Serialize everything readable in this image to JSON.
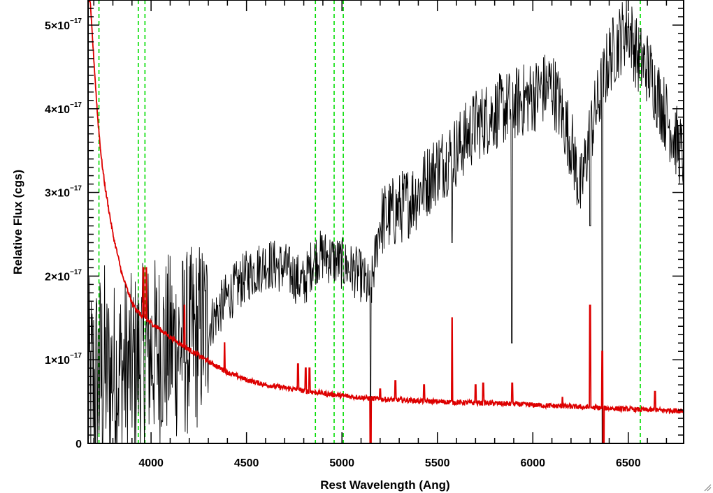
{
  "chart_data": {
    "type": "line",
    "xlabel": "Rest Wavelength (Ang)",
    "ylabel": "Relative Flux (cgs)",
    "xlim": [
      3670,
      6790
    ],
    "ylim": [
      0,
      5.3e-17
    ],
    "x_ticks": [
      4000,
      4500,
      5000,
      5500,
      6000,
      6500
    ],
    "x_tick_labels": [
      "4000",
      "4500",
      "5000",
      "5500",
      "6000",
      "6500"
    ],
    "y_ticks": [
      0,
      1e-17,
      2e-17,
      3e-17,
      4e-17,
      5e-17
    ],
    "y_tick_labels": [
      {
        "mantissa": "0",
        "power": ""
      },
      {
        "mantissa": "1×10",
        "power": "−17"
      },
      {
        "mantissa": "2×10",
        "power": "−17"
      },
      {
        "mantissa": "3×10",
        "power": "−17"
      },
      {
        "mantissa": "4×10",
        "power": "−17"
      },
      {
        "mantissa": "5×10",
        "power": "−17"
      }
    ],
    "grid": false,
    "vertical_reference_lines": {
      "color": "#00dd00",
      "style": "dashed",
      "x": [
        3727,
        3933,
        3968,
        4861,
        4959,
        5007,
        6563
      ]
    },
    "series": [
      {
        "color": "#000000",
        "style": "noisy-spectrum",
        "envelope_x": [
          3680,
          3750,
          3900,
          4000,
          4200,
          4300,
          4400,
          4500,
          4600,
          4700,
          4800,
          4850,
          4900,
          5000,
          5100,
          5150,
          5200,
          5300,
          5400,
          5500,
          5600,
          5700,
          5800,
          5900,
          6000,
          6100,
          6200,
          6250,
          6300,
          6400,
          6500,
          6550,
          6600,
          6700,
          6790
        ],
        "envelope_y": [
          6e-18,
          8e-18,
          9e-18,
          1.1e-17,
          1.2e-17,
          1.4e-17,
          1.75e-17,
          2e-17,
          2.15e-17,
          2.1e-17,
          1.9e-17,
          2.2e-17,
          2.25e-17,
          2.15e-17,
          2e-17,
          1.8e-17,
          2.65e-17,
          2.8e-17,
          3e-17,
          3.3e-17,
          3.5e-17,
          3.8e-17,
          3.95e-17,
          4.05e-17,
          4.15e-17,
          4.3e-17,
          3.6e-17,
          3e-17,
          3.7e-17,
          4.6e-17,
          5e-17,
          4.6e-17,
          4.5e-17,
          3.9e-17,
          3.4e-17
        ],
        "dips": [
          {
            "x": 5150,
            "y": 0.0
          },
          {
            "x": 5577,
            "y": 2.4e-17
          },
          {
            "x": 5890,
            "y": 1.2e-17
          },
          {
            "x": 6300,
            "y": 2.6e-17
          },
          {
            "x": 6364,
            "y": 0.0
          }
        ]
      },
      {
        "color": "#dd0000",
        "style": "error-spectrum",
        "x": [
          3680,
          3700,
          3720,
          3740,
          3760,
          3800,
          3850,
          3900,
          3950,
          4000,
          4050,
          4100,
          4200,
          4300,
          4400,
          4500,
          4600,
          4800,
          5000,
          5200,
          5400,
          5600,
          5800,
          6000,
          6200,
          6400,
          6600,
          6790
        ],
        "y": [
          5.3e-17,
          4.6e-17,
          3.9e-17,
          3.4e-17,
          3.05e-17,
          2.5e-17,
          2e-17,
          1.68e-17,
          1.52e-17,
          1.44e-17,
          1.36e-17,
          1.27e-17,
          1.12e-17,
          9.8e-18,
          8.5e-18,
          7.6e-18,
          7e-18,
          6.3e-18,
          5.7e-18,
          5.3e-18,
          5.1e-18,
          4.9e-18,
          4.8e-18,
          4.6e-18,
          4.4e-18,
          4.2e-18,
          4e-18,
          3.9e-18
        ],
        "spikes": [
          {
            "x": 3960,
            "y": 2.1e-17
          },
          {
            "x": 3975,
            "y": 2.1e-17
          },
          {
            "x": 4175,
            "y": 1.65e-17
          },
          {
            "x": 4385,
            "y": 1.2e-17
          },
          {
            "x": 4770,
            "y": 9.5e-18
          },
          {
            "x": 4810,
            "y": 9e-18
          },
          {
            "x": 4830,
            "y": 9e-18
          },
          {
            "x": 5200,
            "y": 6.5e-18
          },
          {
            "x": 5280,
            "y": 7.5e-18
          },
          {
            "x": 5430,
            "y": 7e-18
          },
          {
            "x": 5577,
            "y": 1.5e-17
          },
          {
            "x": 5700,
            "y": 7e-18
          },
          {
            "x": 5740,
            "y": 7.2e-18
          },
          {
            "x": 5892,
            "y": 7.2e-18
          },
          {
            "x": 6155,
            "y": 5.5e-18
          },
          {
            "x": 6300,
            "y": 1.65e-17
          },
          {
            "x": 6364,
            "y": 1.1e-17
          },
          {
            "x": 6640,
            "y": 6.2e-18
          }
        ],
        "dips": [
          {
            "x": 5150,
            "y": 0.0
          },
          {
            "x": 6370,
            "y": 0.0
          }
        ]
      }
    ]
  }
}
